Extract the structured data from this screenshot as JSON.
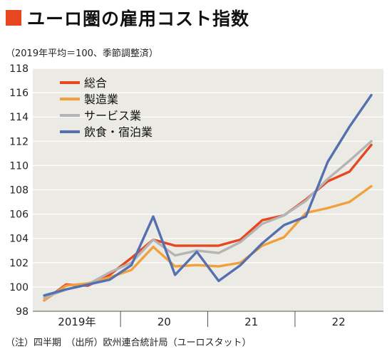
{
  "chart_data": {
    "type": "line",
    "title": "ユーロ圏の雇用コスト指数",
    "subtitle": "（2019年平均＝100、季節調整済）",
    "footnote": "（注）四半期　（出所）欧州連合統計局（ユーロスタット）",
    "ylim": [
      98,
      118
    ],
    "yticks": [
      98,
      100,
      102,
      104,
      106,
      108,
      110,
      112,
      114,
      116,
      118
    ],
    "x_groups": [
      "2019年",
      "20",
      "21",
      "22"
    ],
    "x": [
      "2019 Q1",
      "2019 Q2",
      "2019 Q3",
      "2019 Q4",
      "2020 Q1",
      "2020 Q2",
      "2020 Q3",
      "2020 Q4",
      "2021 Q1",
      "2021 Q2",
      "2021 Q3",
      "2021 Q4",
      "2022 Q1",
      "2022 Q2",
      "2022 Q3",
      "2022 Q4"
    ],
    "series": [
      {
        "name": "総合",
        "color": "#e8461e",
        "values": [
          98.9,
          100.2,
          100.1,
          101.0,
          102.4,
          103.9,
          103.4,
          103.4,
          103.4,
          103.9,
          105.5,
          105.9,
          107.2,
          108.7,
          109.5,
          111.7
        ]
      },
      {
        "name": "製造業",
        "color": "#f0a13c",
        "values": [
          98.9,
          100.1,
          100.3,
          100.8,
          101.4,
          103.3,
          101.7,
          101.8,
          101.7,
          102.0,
          103.4,
          104.1,
          106.1,
          106.5,
          107.0,
          108.3
        ]
      },
      {
        "name": "サービス業",
        "color": "#b4b4b4",
        "values": [
          99.1,
          99.8,
          100.2,
          101.2,
          102.0,
          103.9,
          102.6,
          103.0,
          102.8,
          103.7,
          105.2,
          105.9,
          107.1,
          108.9,
          110.4,
          112.0
        ]
      },
      {
        "name": "飲食・宿泊業",
        "color": "#5470b0",
        "values": [
          99.3,
          99.8,
          100.2,
          100.6,
          101.8,
          105.8,
          101.0,
          102.9,
          100.5,
          101.8,
          103.6,
          105.1,
          105.8,
          110.3,
          113.2,
          115.8
        ]
      }
    ],
    "grid": true,
    "legend": "top-left"
  },
  "colors": {
    "accent": "#e8461e"
  }
}
